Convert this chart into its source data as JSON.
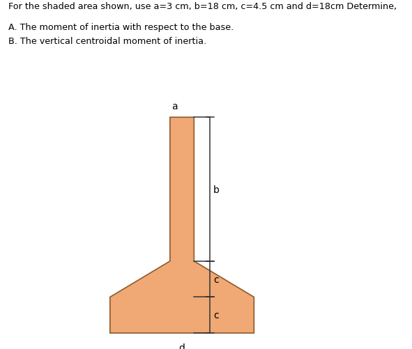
{
  "title_text": "For the shaded area shown, use a=3 cm, b=18 cm, c=4.5 cm and d=18cm Determine,",
  "line_A": "A. The moment of inertia with respect to the base.",
  "line_B": "B. The vertical centroidal moment of inertia.",
  "shape_color": "#F0A875",
  "shape_edge_color": "#8B5A2B",
  "bg_color": "#ffffff",
  "text_color": "#000000",
  "dim_color": "#333333",
  "label_a": "a",
  "label_b": "b",
  "label_c": "c",
  "label_d": "d",
  "fig_width": 5.91,
  "fig_height": 5.02,
  "dpi": 100
}
